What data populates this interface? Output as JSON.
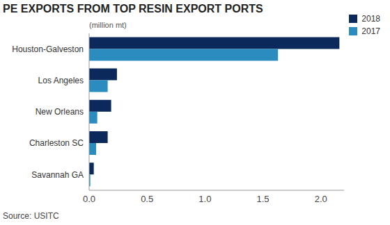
{
  "chart_data": {
    "type": "bar",
    "title": "PE EXPORTS FROM TOP RESIN EXPORT PORTS",
    "subtitle": "(million mt)",
    "source": "Source: USITC",
    "orientation": "horizontal",
    "categories": [
      "Houston-Galveston",
      "Los Angeles",
      "New Orleans",
      "Charleston SC",
      "Savannah GA"
    ],
    "series": [
      {
        "name": "2018",
        "color": "#0b2a5b",
        "values": [
          2.16,
          0.24,
          0.19,
          0.16,
          0.04
        ]
      },
      {
        "name": "2017",
        "color": "#2b8cc0",
        "values": [
          1.63,
          0.16,
          0.07,
          0.06,
          0.01
        ]
      }
    ],
    "xlim": [
      0,
      2.2
    ],
    "xticks": [
      {
        "value": 0,
        "label": "0.0"
      },
      0.5,
      {
        "value": 1,
        "label": "1.0"
      },
      1.5,
      {
        "value": 2,
        "label": "2.0"
      }
    ],
    "grid": false,
    "legend": "top-right"
  }
}
